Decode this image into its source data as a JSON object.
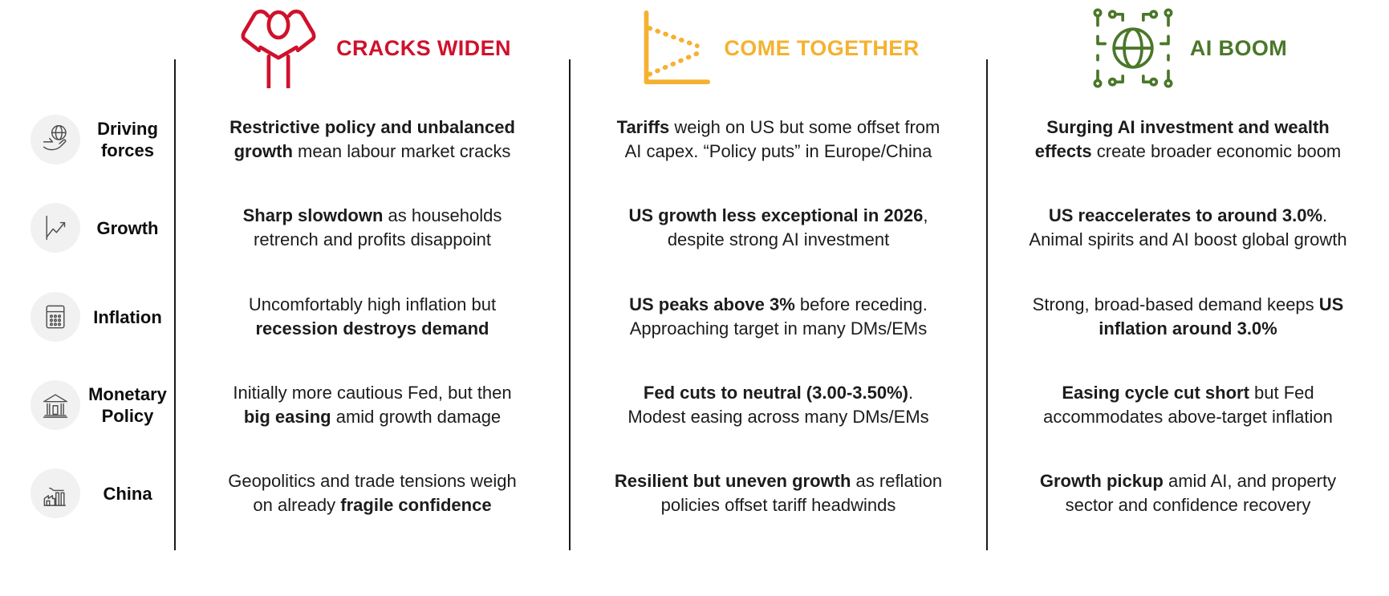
{
  "header": {
    "columns": [
      {
        "title": "CRACKS WIDEN",
        "color": "#D0112B",
        "icon": "stressed-person-icon"
      },
      {
        "title": "COME TOGETHER",
        "color": "#F5B130",
        "icon": "converging-lines-chart-icon"
      },
      {
        "title": "AI BOOM",
        "color": "#4A7729",
        "icon": "circuit-globe-icon"
      }
    ]
  },
  "rows": [
    {
      "label": "Driving forces",
      "icon": "hand-holding-globe-icon",
      "cells": [
        {
          "lines": [
            [
              {
                "t": "Restrictive policy and unbalanced",
                "b": true
              }
            ],
            [
              {
                "t": "growth",
                "b": true
              },
              {
                "t": " mean labour market cracks",
                "b": false
              }
            ]
          ]
        },
        {
          "lines": [
            [
              {
                "t": "Tariffs",
                "b": true
              },
              {
                "t": " weigh on US but some offset from",
                "b": false
              }
            ],
            [
              {
                "t": "AI capex. “Policy puts” in Europe/China",
                "b": false
              }
            ]
          ]
        },
        {
          "lines": [
            [
              {
                "t": "Surging AI investment and wealth",
                "b": true
              }
            ],
            [
              {
                "t": "effects",
                "b": true
              },
              {
                "t": " create broader economic boom",
                "b": false
              }
            ]
          ]
        }
      ]
    },
    {
      "label": "Growth",
      "icon": "rising-line-chart-icon",
      "cells": [
        {
          "lines": [
            [
              {
                "t": "Sharp slowdown",
                "b": true
              },
              {
                "t": " as households",
                "b": false
              }
            ],
            [
              {
                "t": "retrench and profits disappoint",
                "b": false
              }
            ]
          ]
        },
        {
          "lines": [
            [
              {
                "t": "US growth less exceptional in 2026",
                "b": true
              },
              {
                "t": ",",
                "b": false
              }
            ],
            [
              {
                "t": "despite strong AI investment",
                "b": false
              }
            ]
          ]
        },
        {
          "lines": [
            [
              {
                "t": "US reaccelerates to around 3.0%",
                "b": true
              },
              {
                "t": ".",
                "b": false
              }
            ],
            [
              {
                "t": "Animal spirits and AI boost global growth",
                "b": false
              }
            ]
          ]
        }
      ]
    },
    {
      "label": "Inflation",
      "icon": "calculator-icon",
      "cells": [
        {
          "lines": [
            [
              {
                "t": "Uncomfortably high inflation but",
                "b": false
              }
            ],
            [
              {
                "t": "recession destroys demand",
                "b": true
              }
            ]
          ]
        },
        {
          "lines": [
            [
              {
                "t": "US peaks above 3%",
                "b": true
              },
              {
                "t": " before receding.",
                "b": false
              }
            ],
            [
              {
                "t": "Approaching target in many DMs/EMs",
                "b": false
              }
            ]
          ]
        },
        {
          "lines": [
            [
              {
                "t": "Strong, broad-based demand keeps ",
                "b": false
              },
              {
                "t": "US",
                "b": true
              }
            ],
            [
              {
                "t": "inflation around 3.0%",
                "b": true
              }
            ]
          ]
        }
      ]
    },
    {
      "label": "Monetary Policy",
      "icon": "bank-building-icon",
      "cells": [
        {
          "lines": [
            [
              {
                "t": "Initially more cautious Fed, but then",
                "b": false
              }
            ],
            [
              {
                "t": "big easing",
                "b": true
              },
              {
                "t": " amid growth damage",
                "b": false
              }
            ]
          ]
        },
        {
          "lines": [
            [
              {
                "t": "Fed cuts to neutral (3.00-3.50%)",
                "b": true
              },
              {
                "t": ".",
                "b": false
              }
            ],
            [
              {
                "t": "Modest easing across many DMs/EMs",
                "b": false
              }
            ]
          ]
        },
        {
          "lines": [
            [
              {
                "t": "Easing cycle cut short",
                "b": true
              },
              {
                "t": " but Fed",
                "b": false
              }
            ],
            [
              {
                "t": "accommodates above-target inflation",
                "b": false
              }
            ]
          ]
        }
      ]
    },
    {
      "label": "China",
      "icon": "factory-icon",
      "cells": [
        {
          "lines": [
            [
              {
                "t": "Geopolitics and trade tensions weigh",
                "b": false
              }
            ],
            [
              {
                "t": "on already ",
                "b": false
              },
              {
                "t": "fragile confidence",
                "b": true
              }
            ]
          ]
        },
        {
          "lines": [
            [
              {
                "t": "Resilient but uneven growth",
                "b": true
              },
              {
                "t": " as reflation",
                "b": false
              }
            ],
            [
              {
                "t": "policies offset tariff headwinds",
                "b": false
              }
            ]
          ]
        },
        {
          "lines": [
            [
              {
                "t": "Growth pickup",
                "b": true
              },
              {
                "t": " amid AI, and property",
                "b": false
              }
            ],
            [
              {
                "t": "sector and confidence recovery",
                "b": false
              }
            ]
          ]
        }
      ]
    }
  ]
}
